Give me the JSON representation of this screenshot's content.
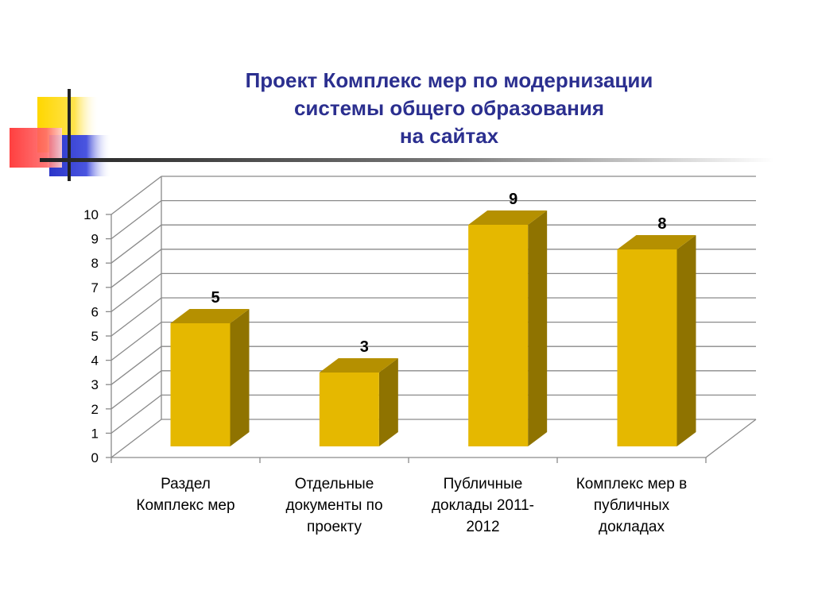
{
  "colors": {
    "title": "#2b2f8f",
    "bar_front": "#e5b800",
    "bar_side": "#8f7300",
    "bar_top": "#b59000",
    "grid": "#8a8a8a",
    "deco_yellow": "#ffd700",
    "deco_red": "#ff3b3b",
    "deco_blue": "#2a35c9"
  },
  "title_lines": [
    "Проект Комплекс мер по модернизации",
    "системы общего образования",
    "на сайтах"
  ],
  "chart_data": {
    "type": "bar",
    "style": "3d-column",
    "categories": [
      [
        "Раздел",
        "Комплекс мер"
      ],
      [
        "Отдельные",
        "документы по",
        "проекту"
      ],
      [
        "Публичные",
        "доклады 2011-",
        "2012"
      ],
      [
        "Комплекс мер в",
        "публичных",
        "докладах"
      ]
    ],
    "values": [
      5,
      3,
      9,
      8
    ],
    "data_labels": [
      "5",
      "3",
      "9",
      "8"
    ],
    "ylim": [
      0,
      10
    ],
    "yticks": [
      "0",
      "1",
      "2",
      "3",
      "4",
      "5",
      "6",
      "7",
      "8",
      "9",
      "10"
    ],
    "grid": true,
    "legend": "none"
  }
}
